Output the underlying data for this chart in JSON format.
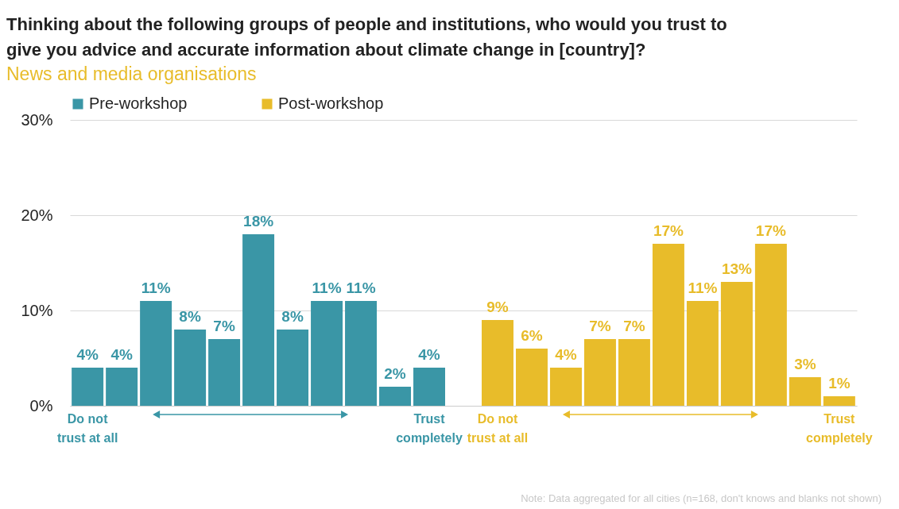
{
  "chart_data": {
    "type": "bar",
    "title": "Thinking about the following groups of people and institutions, who would you trust to give you advice and accurate information about climate change in [country]?",
    "subtitle": "News and media organisations",
    "categories": [
      "Do not trust at all",
      null,
      null,
      null,
      null,
      null,
      null,
      null,
      null,
      null,
      "Trust completely",
      null,
      "Do not trust at all",
      null,
      null,
      null,
      null,
      null,
      null,
      null,
      null,
      null,
      "Trust completely"
    ],
    "series": [
      {
        "name": "Pre-workshop",
        "color": "#3a96a6",
        "values": [
          4,
          4,
          11,
          8,
          7,
          18,
          8,
          11,
          11,
          2,
          4,
          null,
          null,
          null,
          null,
          null,
          null,
          null,
          null,
          null,
          null,
          null,
          null
        ],
        "value_labels": [
          "4%",
          "4%",
          "11%",
          "8%",
          "7%",
          "18%",
          "8%",
          "11%",
          "11%",
          "2%",
          "4%",
          null,
          null,
          null,
          null,
          null,
          null,
          null,
          null,
          null,
          null,
          null,
          null
        ]
      },
      {
        "name": "Post-workshop",
        "color": "#e8bc2a",
        "values": [
          null,
          null,
          null,
          null,
          null,
          null,
          null,
          null,
          null,
          null,
          null,
          null,
          9,
          6,
          4,
          7,
          7,
          17,
          11,
          13,
          17,
          3,
          1
        ],
        "value_labels": [
          null,
          null,
          null,
          null,
          null,
          null,
          null,
          null,
          null,
          null,
          null,
          null,
          "9%",
          "6%",
          "4%",
          "7%",
          "7%",
          "17%",
          "11%",
          "13%",
          "17%",
          "3%",
          "1%"
        ]
      }
    ],
    "stacked": true,
    "ylim": [
      0,
      30
    ],
    "yticks": [
      {
        "value": 0,
        "label": "0%"
      },
      {
        "value": 10,
        "label": "10%"
      },
      {
        "value": 20,
        "label": "20%"
      },
      {
        "value": 30,
        "label": "30%"
      }
    ],
    "grid": "y",
    "legend": "top",
    "annotations": [
      "Note: Data aggregated for all cities (n=168, don't knows and blanks not shown)"
    ]
  }
}
